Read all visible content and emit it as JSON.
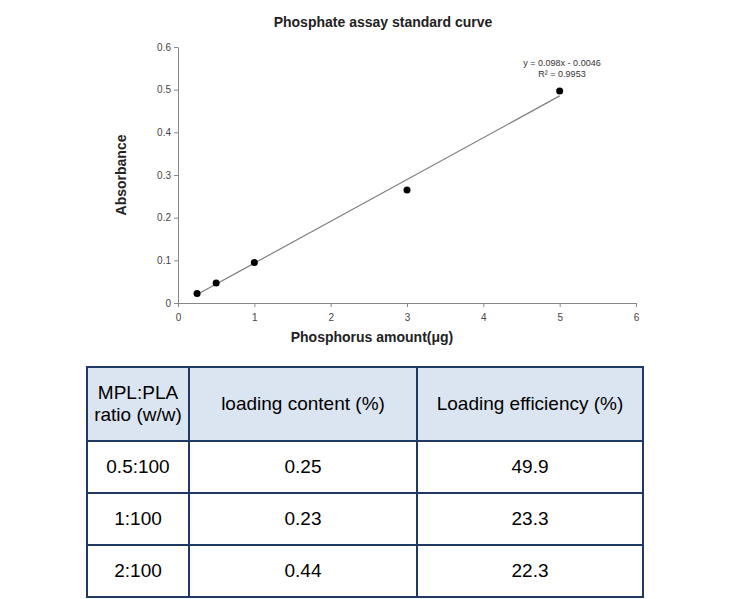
{
  "chart_data": {
    "type": "scatter",
    "title": "Phosphate assay standard curve",
    "x_label": "Phosphorus amount(μg)",
    "y_label": "Absorbance",
    "x": [
      0.25,
      0.5,
      1,
      3,
      5
    ],
    "values": [
      0.022,
      0.047,
      0.095,
      0.265,
      0.497
    ],
    "color": "#000000",
    "marker": "circle",
    "trendline": {
      "x": [
        0.25,
        5
      ],
      "values": [
        0.0199,
        0.4854
      ],
      "color": "#7f7f7f"
    },
    "annotations": [
      "y = 0.098x - 0.0046",
      "R² = 0.9953"
    ],
    "xlim": [
      0,
      6
    ],
    "xticks": [
      0,
      1,
      2,
      3,
      4,
      5,
      6
    ],
    "ylim": [
      0,
      0.6
    ],
    "yticks": [
      0,
      0.1,
      0.2,
      0.3,
      0.4,
      0.5,
      0.6
    ],
    "grid": false
  },
  "table": {
    "header": [
      "MPL:PLA ratio (w/w)",
      "loading content (%)",
      "Loading efficiency (%)"
    ],
    "rows": [
      [
        "0.5:100",
        0.25,
        49.9
      ],
      [
        "1:100",
        0.23,
        23.3
      ],
      [
        "2:100",
        0.44,
        22.3
      ]
    ]
  }
}
